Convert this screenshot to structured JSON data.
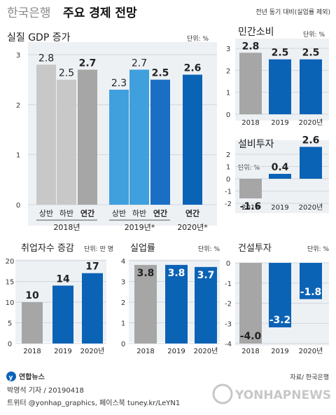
{
  "header": {
    "title_light": "한국은행",
    "title_bold": "주요 경제 전망",
    "note": "전년 동기 대비(실업률 제외)"
  },
  "colors": {
    "title_gray": "#8a8a8a",
    "gray_bar": "#a6a6a6",
    "light_gray_bar": "#c8c8c8",
    "light_blue_bar": "#3fa0dd",
    "mid_blue_bar": "#1a6fc4",
    "dark_blue_bar": "#0b63b6",
    "panel_bg": "#eef1f4",
    "grid": "#cfd6de"
  },
  "chart_data": [
    {
      "id": "gdp",
      "type": "bar",
      "title": "실질 GDP 증가",
      "unit": "단위: %",
      "ylim": [
        0,
        3
      ],
      "yticks": [
        0,
        1,
        2,
        3
      ],
      "grid": true,
      "categories": [
        "상반",
        "하반",
        "연간",
        "상반",
        "하반",
        "연간",
        "연간"
      ],
      "values": [
        2.8,
        2.5,
        2.7,
        2.3,
        2.7,
        2.5,
        2.6
      ],
      "value_labels": [
        "2.8",
        "2.5",
        "2.7",
        "2.3",
        "2.7",
        "2.5",
        "2.6"
      ],
      "groups": [
        {
          "label": "2018년",
          "indices": [
            0,
            1,
            2
          ]
        },
        {
          "label": "2019년*",
          "indices": [
            3,
            4,
            5
          ]
        },
        {
          "label": "2020년*",
          "indices": [
            6
          ]
        }
      ]
    },
    {
      "id": "consumption",
      "type": "bar",
      "title": "민간소비",
      "unit": "단위: %",
      "ylim": [
        0,
        3
      ],
      "yticks": [
        0,
        1,
        2,
        3
      ],
      "grid": true,
      "categories": [
        "2018",
        "2019",
        "2020년"
      ],
      "values": [
        2.8,
        2.5,
        2.5
      ],
      "value_labels": [
        "2.8",
        "2.5",
        "2.5"
      ]
    },
    {
      "id": "facility",
      "type": "bar",
      "title": "설비투자",
      "unit": "단위: %",
      "ylim": [
        -2,
        2
      ],
      "yticks": [
        -2,
        -1,
        0,
        1,
        2
      ],
      "grid": true,
      "categories": [
        "2018",
        "2019",
        "2020년"
      ],
      "values": [
        -1.6,
        0.4,
        2.6
      ],
      "value_labels": [
        "-1.6",
        "0.4",
        "2.6"
      ]
    },
    {
      "id": "employment",
      "type": "bar",
      "title": "취업자수 증감",
      "unit": "단위: 만 명",
      "ylim": [
        0,
        20
      ],
      "yticks": [
        0,
        5,
        10,
        15,
        20
      ],
      "grid": true,
      "categories": [
        "2018",
        "2019",
        "2020년"
      ],
      "values": [
        10,
        14,
        17
      ],
      "value_labels": [
        "10",
        "14",
        "17"
      ]
    },
    {
      "id": "unemployment",
      "type": "bar",
      "title": "실업률",
      "unit": "단위: %",
      "ylim": [
        0,
        4
      ],
      "yticks": [
        0,
        1,
        2,
        3,
        4
      ],
      "grid": true,
      "categories": [
        "2018",
        "2019",
        "2020년"
      ],
      "values": [
        3.8,
        3.8,
        3.7
      ],
      "value_labels": [
        "3.8",
        "3.8",
        "3.7"
      ]
    },
    {
      "id": "construction",
      "type": "bar",
      "title": "건설투자",
      "unit": "단위: %",
      "ylim": [
        -4,
        0
      ],
      "yticks": [
        -4,
        -3,
        -2,
        -1,
        0
      ],
      "grid": true,
      "categories": [
        "2018",
        "2019",
        "2020년"
      ],
      "values": [
        -4.0,
        -3.2,
        -1.8
      ],
      "value_labels": [
        "-4.0",
        "-3.2",
        "-1.8"
      ]
    }
  ],
  "footer": {
    "logo_text": "연합뉴스",
    "source": "자료/ 한국은행",
    "credit": "박영석 기자 / 20190418",
    "social": "트위터 @yonhap_graphics, 페이스북 tuney.kr/LeYN1",
    "watermark": "YONHAPNEWS"
  }
}
